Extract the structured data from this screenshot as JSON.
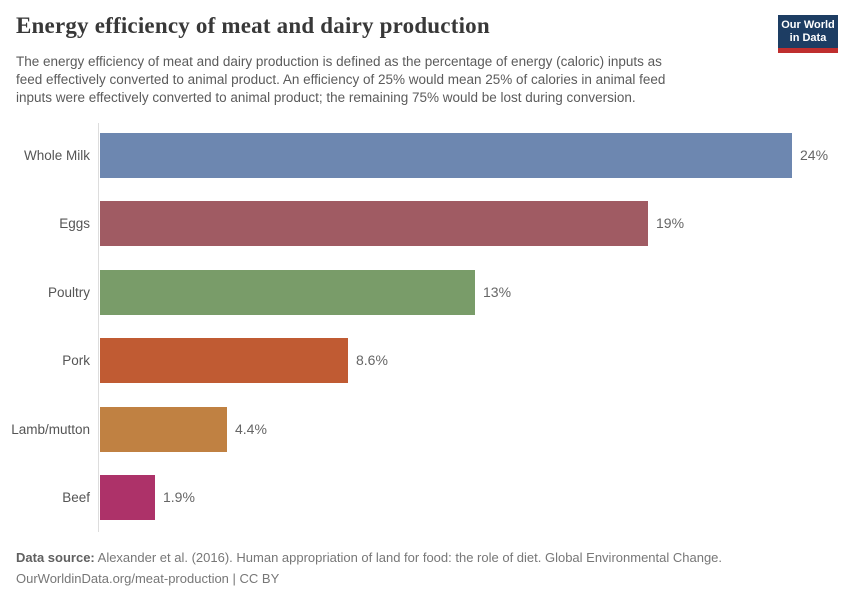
{
  "header": {
    "title": "Energy efficiency of meat and dairy production",
    "subtitle_lines": [
      "The energy efficiency of meat and dairy production is defined as the percentage of energy (caloric) inputs as",
      "feed effectively converted to animal product. An efficiency of 25% would mean 25% of calories in animal feed",
      "inputs were effectively converted to animal product; the remaining 75% would be lost during conversion."
    ]
  },
  "logo": {
    "line1": "Our World",
    "line2": "in Data",
    "bg_color": "#1d3d63",
    "accent_color": "#bf2e2e"
  },
  "chart_data": {
    "type": "bar",
    "orientation": "horizontal",
    "title": "Energy efficiency of meat and dairy production",
    "xlabel": "",
    "ylabel": "",
    "categories": [
      "Whole Milk",
      "Eggs",
      "Poultry",
      "Pork",
      "Lamb/mutton",
      "Beef"
    ],
    "values": [
      24,
      19,
      13,
      8.6,
      4.4,
      1.9
    ],
    "value_labels": [
      "24%",
      "19%",
      "13%",
      "8.6%",
      "4.4%",
      "1.9%"
    ],
    "bar_colors": [
      "#6d87b0",
      "#a05b63",
      "#799c69",
      "#c05b33",
      "#c08142",
      "#ad3269"
    ],
    "xlim": [
      0,
      25.6
    ],
    "grid": false,
    "legend": null
  },
  "footer": {
    "source_label": "Data source:",
    "source_text": " Alexander et al. (2016). Human appropriation of land for food: the role of diet. Global Environmental Change.",
    "link_text": "OurWorldinData.org/meat-production | CC BY"
  },
  "colors": {
    "title": "#383838",
    "subtitle": "#5b5b5b",
    "axis_line": "#dddddd",
    "category_label": "#555555",
    "value_label": "#666666",
    "footer_text": "#777777"
  }
}
